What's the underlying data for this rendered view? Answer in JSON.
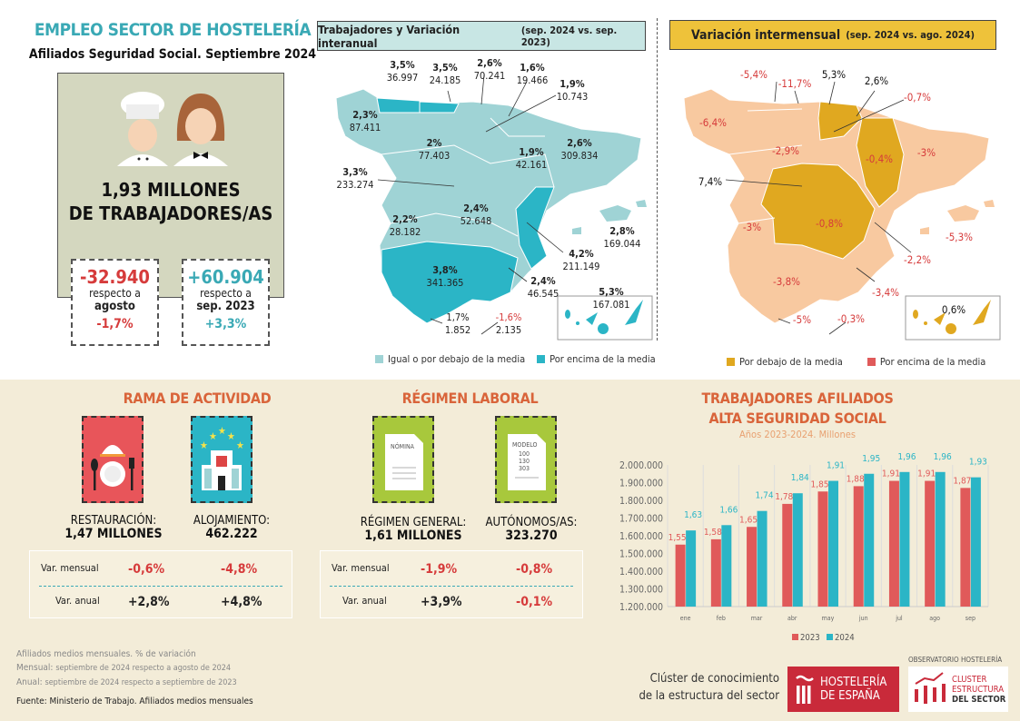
{
  "header": {
    "title": "EMPLEO SECTOR DE HOSTELERÍA",
    "subtitle": "Afiliados Seguridad Social. Septiembre 2024"
  },
  "summary": {
    "total_line1": "1,93 MILLONES",
    "total_line2": "DE TRABAJADORES/AS",
    "monthly": {
      "value": "-32.940",
      "text1": "respecto a",
      "text2": "agosto",
      "pct": "-1,7%"
    },
    "annual": {
      "value": "+60.904",
      "text1": "respecto a",
      "text2": "sep. 2023",
      "pct": "+3,3%"
    }
  },
  "map1": {
    "title": "Trabajadores y Variación interanual",
    "period": "(sep. 2024 vs. sep. 2023)",
    "labels": [
      {
        "pct": "3,5%",
        "val": "36.997"
      },
      {
        "pct": "3,5%",
        "val": "24.185"
      },
      {
        "pct": "2,6%",
        "val": "70.241"
      },
      {
        "pct": "1,6%",
        "val": "19.466"
      },
      {
        "pct": "1,9%",
        "val": "10.743"
      },
      {
        "pct": "2,3%",
        "val": "87.411"
      },
      {
        "pct": "2%",
        "val": "77.403"
      },
      {
        "pct": "3,3%",
        "val": "233.274"
      },
      {
        "pct": "1,9%",
        "val": "42.161"
      },
      {
        "pct": "2,6%",
        "val": "309.834"
      },
      {
        "pct": "2,4%",
        "val": "52.648"
      },
      {
        "pct": "2,2%",
        "val": "28.182"
      },
      {
        "pct": "4,2%",
        "val": "211.149"
      },
      {
        "pct": "2,8%",
        "val": "169.044"
      },
      {
        "pct": "3,8%",
        "val": "341.365"
      },
      {
        "pct": "2,4%",
        "val": "46.545"
      },
      {
        "pct": "5,3%",
        "val": "167.081"
      },
      {
        "pct": "1,7%",
        "val": "1.852"
      },
      {
        "pct": "-1,6%",
        "val": "2.135"
      }
    ],
    "legend": [
      "Igual o por debajo de la media",
      "Por encima de la media"
    ],
    "colors": {
      "below": "#9fd3d5",
      "above": "#2bb5c6"
    }
  },
  "map2": {
    "title": "Variación intermensual",
    "period": "(sep. 2024 vs. ago. 2024)",
    "labels": [
      "-5,4%",
      "-11,7%",
      "5,3%",
      "2,6%",
      "-0,7%",
      "-6,4%",
      "-2,9%",
      "-0,4%",
      "-3%",
      "7,4%",
      "-0,8%",
      "-3%",
      "-5,3%",
      "-2,2%",
      "-3,8%",
      "-3,4%",
      "-5%",
      "-0,3%",
      "0,6%"
    ],
    "legend": [
      "Por debajo de la media",
      "Por encima de la media"
    ],
    "colors": {
      "below": "#e0a820",
      "above": "#e05a5a",
      "region": "#f8c9a0"
    }
  },
  "activity": {
    "title": "RAMA DE ACTIVIDAD",
    "items": [
      {
        "label": "RESTAURACIÓN:",
        "value": "1,47 MILLONES",
        "mensual": "-0,6%",
        "anual": "+2,8%"
      },
      {
        "label": "ALOJAMIENTO:",
        "value": "462.222",
        "mensual": "-4,8%",
        "anual": "+4,8%"
      }
    ],
    "row_mensual": "Var. mensual",
    "row_anual": "Var. anual"
  },
  "regime": {
    "title": "RÉGIMEN LABORAL",
    "items": [
      {
        "label": "RÉGIMEN GENERAL:",
        "value": "1,61 MILLONES",
        "mensual": "-1,9%",
        "anual": "+3,9%",
        "doc": "NÓMINA"
      },
      {
        "label": "AUTÓNOMOS/AS:",
        "value": "323.270",
        "mensual": "-0,8%",
        "anual": "-0,1%",
        "doc": "MODELO",
        "doc_lines": [
          "100",
          "130",
          "303"
        ]
      }
    ],
    "row_mensual": "Var. mensual",
    "row_anual": "Var. anual"
  },
  "chart_data": {
    "type": "bar",
    "title": "TRABAJADORES AFILIADOS",
    "title2": "ALTA SEGURIDAD SOCIAL",
    "subtitle": "Años 2023-2024. Millones",
    "categories": [
      "ene",
      "feb",
      "mar",
      "abr",
      "may",
      "jun",
      "jul",
      "ago",
      "sep"
    ],
    "series": [
      {
        "name": "2023",
        "color": "#e05a5a",
        "values": [
          1.55,
          1.58,
          1.65,
          1.78,
          1.85,
          1.88,
          1.91,
          1.91,
          1.87
        ],
        "labels": [
          "1,55",
          "1,58",
          "1,65",
          "1,78",
          "1,85",
          "1,88",
          "1,91",
          "1,91",
          "1,87"
        ]
      },
      {
        "name": "2024",
        "color": "#2bb5c6",
        "values": [
          1.63,
          1.66,
          1.74,
          1.84,
          1.91,
          1.95,
          1.96,
          1.96,
          1.93
        ],
        "labels": [
          "1,63",
          "1,66",
          "1,74",
          "1,84",
          "1,91",
          "1,95",
          "1,96",
          "1,96",
          "1,93"
        ]
      }
    ],
    "ylim": [
      1.2,
      2.0
    ],
    "ytick_labels": [
      "1.200.000",
      "1.300.000",
      "1.400.000",
      "1.500.000",
      "1.600.000",
      "1.700.000",
      "1.800.000",
      "1.900.000",
      "2.000.000"
    ],
    "grid": "vertical",
    "legend": "bottom"
  },
  "notes": {
    "line1": "Afiliados medios mensuales. % de variación",
    "mensual_k": "Mensual:",
    "mensual_v": "septiembre de 2024 respecto a agosto de 2024",
    "anual_k": "Anual:",
    "anual_v": "septiembre de 2024 respecto a septiembre de 2023",
    "source": "Fuente: Ministerio de Trabajo. Afiliados medios mensuales"
  },
  "footer": {
    "cluster_line1": "Clúster de conocimiento",
    "cluster_line2": "de la estructura del sector",
    "logo1": [
      "HOSTELERÍA",
      "DE ESPAÑA"
    ],
    "logo2_top": "OBSERVATORIO HOSTELERÍA",
    "logo2": [
      "CLUSTER",
      "ESTRUCTURA",
      "DEL SECTOR"
    ]
  }
}
